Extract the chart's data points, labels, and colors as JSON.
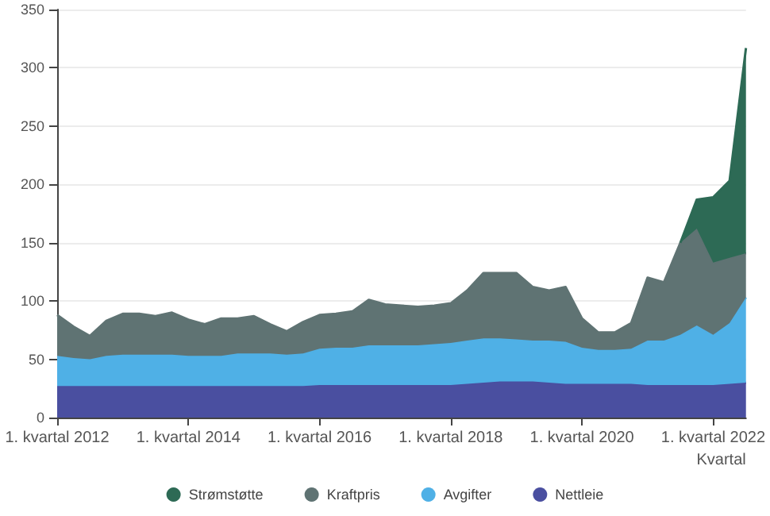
{
  "chart_data": {
    "type": "area",
    "stacked": true,
    "xlabel": "Kvartal",
    "categories": [
      "1. kvartal 2012",
      null,
      null,
      null,
      null,
      null,
      null,
      null,
      "1. kvartal 2014",
      null,
      null,
      null,
      null,
      null,
      null,
      null,
      "1. kvartal 2016",
      null,
      null,
      null,
      null,
      null,
      null,
      null,
      "1. kvartal 2018",
      null,
      null,
      null,
      null,
      null,
      null,
      null,
      "1. kvartal 2020",
      null,
      null,
      null,
      null,
      null,
      null,
      null,
      "1. kvartal 2022",
      null,
      null
    ],
    "series": [
      {
        "name": "Nettleie",
        "color": "#4a4fa0",
        "values": [
          27,
          27,
          27,
          27,
          27,
          27,
          27,
          27,
          27,
          27,
          27,
          27,
          27,
          27,
          27,
          27,
          28,
          28,
          28,
          28,
          28,
          28,
          28,
          28,
          28,
          29,
          30,
          31,
          31,
          31,
          30,
          29,
          29,
          29,
          29,
          29,
          28,
          28,
          28,
          28,
          28,
          29,
          30
        ]
      },
      {
        "name": "Avgifter",
        "color": "#4fb0e6",
        "values": [
          26,
          24,
          23,
          26,
          27,
          27,
          27,
          27,
          26,
          26,
          26,
          28,
          28,
          28,
          27,
          28,
          31,
          32,
          32,
          34,
          34,
          34,
          34,
          35,
          36,
          37,
          38,
          37,
          36,
          35,
          36,
          36,
          31,
          29,
          29,
          30,
          38,
          38,
          43,
          51,
          43,
          52,
          73
        ]
      },
      {
        "name": "Kraftpris",
        "color": "#5f7373",
        "values": [
          35,
          27,
          20,
          30,
          35,
          35,
          33,
          36,
          31,
          27,
          32,
          30,
          32,
          25,
          20,
          27,
          29,
          29,
          31,
          39,
          35,
          34,
          33,
          33,
          34,
          43,
          56,
          56,
          57,
          46,
          43,
          47,
          25,
          15,
          15,
          22,
          54,
          50,
          79,
          83,
          62,
          56,
          38
        ]
      },
      {
        "name": "Strømstøtte",
        "color": "#2d6a55",
        "values": [
          null,
          null,
          null,
          null,
          null,
          null,
          null,
          null,
          null,
          null,
          null,
          null,
          null,
          null,
          null,
          null,
          null,
          null,
          null,
          null,
          null,
          null,
          null,
          null,
          null,
          null,
          null,
          null,
          null,
          null,
          null,
          null,
          null,
          null,
          null,
          null,
          null,
          null,
          0,
          25,
          56,
          66,
          176
        ]
      }
    ],
    "ylim": [
      0,
      350
    ],
    "yticks": [
      0,
      50,
      100,
      150,
      200,
      250,
      300,
      350
    ],
    "grid": "y",
    "legend": "bottom",
    "marker": "none"
  }
}
